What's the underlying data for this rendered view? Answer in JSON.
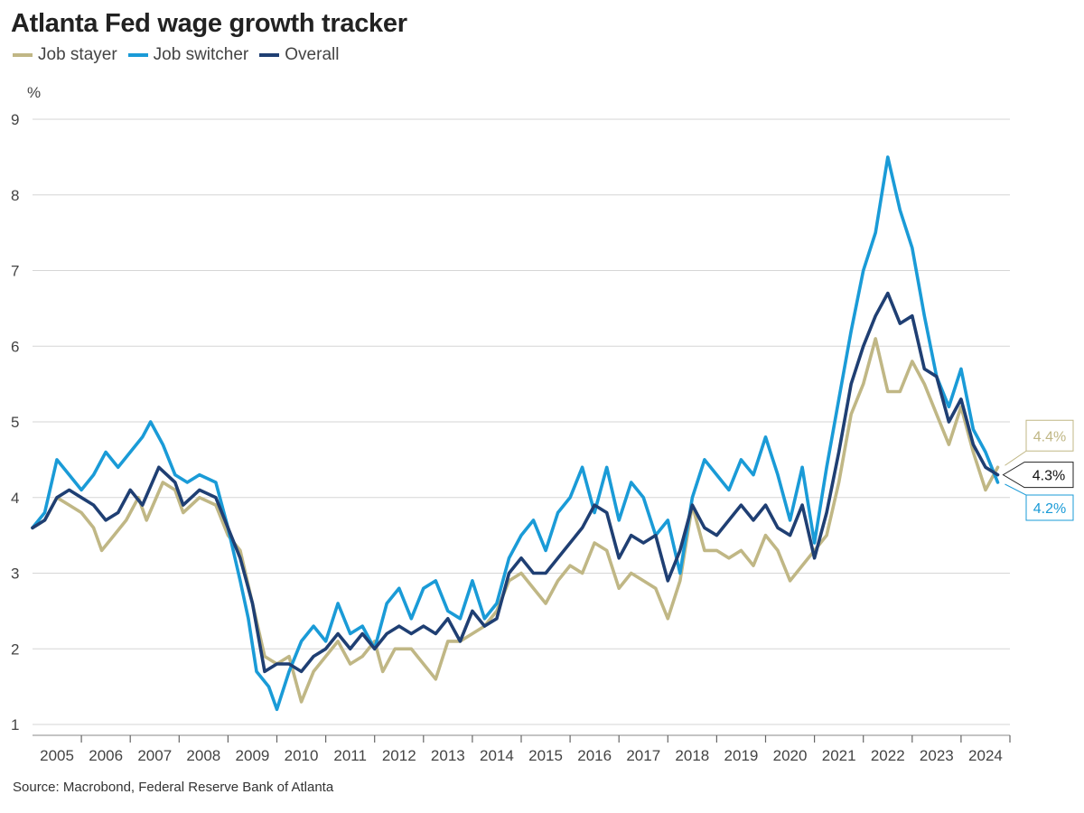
{
  "title": "Atlanta Fed wage growth tracker",
  "source": "Source: Macrobond, Federal Reserve Bank of Atlanta",
  "legend": [
    {
      "name": "Job stayer",
      "color": "#c0b785"
    },
    {
      "name": "Job switcher",
      "color": "#1a9bd7"
    },
    {
      "name": "Overall",
      "color": "#1f3f73"
    }
  ],
  "chart_data": {
    "type": "line",
    "ylabel": "%",
    "ylim": [
      1,
      9
    ],
    "yticks": [
      1,
      2,
      3,
      4,
      5,
      6,
      7,
      8,
      9
    ],
    "xlim": [
      "2005-01",
      "2024-12"
    ],
    "xticks": [
      "2005",
      "2006",
      "2007",
      "2008",
      "2009",
      "2010",
      "2011",
      "2012",
      "2013",
      "2014",
      "2015",
      "2016",
      "2017",
      "2018",
      "2019",
      "2020",
      "2021",
      "2022",
      "2023",
      "2024"
    ],
    "grid": "horizontal",
    "series": [
      {
        "name": "Job stayer",
        "color": "#c0b785",
        "end_label": "4.4%",
        "points": [
          [
            "2005-01",
            3.6
          ],
          [
            "2005-04",
            3.7
          ],
          [
            "2005-07",
            4.0
          ],
          [
            "2005-10",
            3.9
          ],
          [
            "2006-01",
            3.8
          ],
          [
            "2006-04",
            3.6
          ],
          [
            "2006-06",
            3.3
          ],
          [
            "2006-09",
            3.5
          ],
          [
            "2006-12",
            3.7
          ],
          [
            "2007-03",
            4.0
          ],
          [
            "2007-05",
            3.7
          ],
          [
            "2007-09",
            4.2
          ],
          [
            "2007-12",
            4.1
          ],
          [
            "2008-02",
            3.8
          ],
          [
            "2008-06",
            4.0
          ],
          [
            "2008-10",
            3.9
          ],
          [
            "2009-01",
            3.5
          ],
          [
            "2009-04",
            3.3
          ],
          [
            "2009-07",
            2.6
          ],
          [
            "2009-10",
            1.9
          ],
          [
            "2010-01",
            1.8
          ],
          [
            "2010-04",
            1.9
          ],
          [
            "2010-07",
            1.3
          ],
          [
            "2010-10",
            1.7
          ],
          [
            "2011-01",
            1.9
          ],
          [
            "2011-04",
            2.1
          ],
          [
            "2011-07",
            1.8
          ],
          [
            "2011-10",
            1.9
          ],
          [
            "2012-01",
            2.1
          ],
          [
            "2012-03",
            1.7
          ],
          [
            "2012-06",
            2.0
          ],
          [
            "2012-10",
            2.0
          ],
          [
            "2013-01",
            1.8
          ],
          [
            "2013-04",
            1.6
          ],
          [
            "2013-07",
            2.1
          ],
          [
            "2013-10",
            2.1
          ],
          [
            "2014-01",
            2.2
          ],
          [
            "2014-04",
            2.3
          ],
          [
            "2014-07",
            2.5
          ],
          [
            "2014-10",
            2.9
          ],
          [
            "2015-01",
            3.0
          ],
          [
            "2015-04",
            2.8
          ],
          [
            "2015-07",
            2.6
          ],
          [
            "2015-10",
            2.9
          ],
          [
            "2016-01",
            3.1
          ],
          [
            "2016-04",
            3.0
          ],
          [
            "2016-07",
            3.4
          ],
          [
            "2016-10",
            3.3
          ],
          [
            "2017-01",
            2.8
          ],
          [
            "2017-04",
            3.0
          ],
          [
            "2017-07",
            2.9
          ],
          [
            "2017-10",
            2.8
          ],
          [
            "2018-01",
            2.4
          ],
          [
            "2018-04",
            2.9
          ],
          [
            "2018-07",
            3.9
          ],
          [
            "2018-10",
            3.3
          ],
          [
            "2019-01",
            3.3
          ],
          [
            "2019-04",
            3.2
          ],
          [
            "2019-07",
            3.3
          ],
          [
            "2019-10",
            3.1
          ],
          [
            "2020-01",
            3.5
          ],
          [
            "2020-04",
            3.3
          ],
          [
            "2020-07",
            2.9
          ],
          [
            "2020-10",
            3.1
          ],
          [
            "2021-01",
            3.3
          ],
          [
            "2021-04",
            3.5
          ],
          [
            "2021-07",
            4.2
          ],
          [
            "2021-10",
            5.1
          ],
          [
            "2022-01",
            5.5
          ],
          [
            "2022-04",
            6.1
          ],
          [
            "2022-07",
            5.4
          ],
          [
            "2022-10",
            5.4
          ],
          [
            "2023-01",
            5.8
          ],
          [
            "2023-04",
            5.5
          ],
          [
            "2023-07",
            5.1
          ],
          [
            "2023-10",
            4.7
          ],
          [
            "2024-01",
            5.2
          ],
          [
            "2024-04",
            4.6
          ],
          [
            "2024-07",
            4.1
          ],
          [
            "2024-10",
            4.4
          ]
        ]
      },
      {
        "name": "Job switcher",
        "color": "#1a9bd7",
        "end_label": "4.2%",
        "points": [
          [
            "2005-01",
            3.6
          ],
          [
            "2005-04",
            3.8
          ],
          [
            "2005-07",
            4.5
          ],
          [
            "2005-10",
            4.3
          ],
          [
            "2006-01",
            4.1
          ],
          [
            "2006-04",
            4.3
          ],
          [
            "2006-07",
            4.6
          ],
          [
            "2006-10",
            4.4
          ],
          [
            "2007-01",
            4.6
          ],
          [
            "2007-04",
            4.8
          ],
          [
            "2007-06",
            5.0
          ],
          [
            "2007-09",
            4.7
          ],
          [
            "2007-12",
            4.3
          ],
          [
            "2008-03",
            4.2
          ],
          [
            "2008-06",
            4.3
          ],
          [
            "2008-10",
            4.2
          ],
          [
            "2009-01",
            3.6
          ],
          [
            "2009-04",
            2.9
          ],
          [
            "2009-06",
            2.4
          ],
          [
            "2009-08",
            1.7
          ],
          [
            "2009-11",
            1.5
          ],
          [
            "2010-01",
            1.2
          ],
          [
            "2010-04",
            1.7
          ],
          [
            "2010-07",
            2.1
          ],
          [
            "2010-10",
            2.3
          ],
          [
            "2011-01",
            2.1
          ],
          [
            "2011-04",
            2.6
          ],
          [
            "2011-07",
            2.2
          ],
          [
            "2011-10",
            2.3
          ],
          [
            "2012-01",
            2.0
          ],
          [
            "2012-04",
            2.6
          ],
          [
            "2012-07",
            2.8
          ],
          [
            "2012-10",
            2.4
          ],
          [
            "2013-01",
            2.8
          ],
          [
            "2013-04",
            2.9
          ],
          [
            "2013-07",
            2.5
          ],
          [
            "2013-10",
            2.4
          ],
          [
            "2014-01",
            2.9
          ],
          [
            "2014-04",
            2.4
          ],
          [
            "2014-07",
            2.6
          ],
          [
            "2014-10",
            3.2
          ],
          [
            "2015-01",
            3.5
          ],
          [
            "2015-04",
            3.7
          ],
          [
            "2015-07",
            3.3
          ],
          [
            "2015-10",
            3.8
          ],
          [
            "2016-01",
            4.0
          ],
          [
            "2016-04",
            4.4
          ],
          [
            "2016-07",
            3.8
          ],
          [
            "2016-10",
            4.4
          ],
          [
            "2017-01",
            3.7
          ],
          [
            "2017-04",
            4.2
          ],
          [
            "2017-07",
            4.0
          ],
          [
            "2017-10",
            3.5
          ],
          [
            "2018-01",
            3.7
          ],
          [
            "2018-04",
            3.0
          ],
          [
            "2018-07",
            4.0
          ],
          [
            "2018-10",
            4.5
          ],
          [
            "2019-01",
            4.3
          ],
          [
            "2019-04",
            4.1
          ],
          [
            "2019-07",
            4.5
          ],
          [
            "2019-10",
            4.3
          ],
          [
            "2020-01",
            4.8
          ],
          [
            "2020-04",
            4.3
          ],
          [
            "2020-07",
            3.7
          ],
          [
            "2020-10",
            4.4
          ],
          [
            "2021-01",
            3.4
          ],
          [
            "2021-04",
            4.4
          ],
          [
            "2021-07",
            5.3
          ],
          [
            "2021-10",
            6.2
          ],
          [
            "2022-01",
            7.0
          ],
          [
            "2022-04",
            7.5
          ],
          [
            "2022-07",
            8.5
          ],
          [
            "2022-10",
            7.8
          ],
          [
            "2023-01",
            7.3
          ],
          [
            "2023-04",
            6.4
          ],
          [
            "2023-07",
            5.6
          ],
          [
            "2023-10",
            5.2
          ],
          [
            "2024-01",
            5.7
          ],
          [
            "2024-04",
            4.9
          ],
          [
            "2024-07",
            4.6
          ],
          [
            "2024-10",
            4.2
          ]
        ]
      },
      {
        "name": "Overall",
        "color": "#1f3f73",
        "end_label": "4.3%",
        "points": [
          [
            "2005-01",
            3.6
          ],
          [
            "2005-04",
            3.7
          ],
          [
            "2005-07",
            4.0
          ],
          [
            "2005-10",
            4.1
          ],
          [
            "2006-01",
            4.0
          ],
          [
            "2006-04",
            3.9
          ],
          [
            "2006-07",
            3.7
          ],
          [
            "2006-10",
            3.8
          ],
          [
            "2007-01",
            4.1
          ],
          [
            "2007-04",
            3.9
          ],
          [
            "2007-08",
            4.4
          ],
          [
            "2007-12",
            4.2
          ],
          [
            "2008-02",
            3.9
          ],
          [
            "2008-06",
            4.1
          ],
          [
            "2008-10",
            4.0
          ],
          [
            "2009-01",
            3.6
          ],
          [
            "2009-04",
            3.2
          ],
          [
            "2009-07",
            2.6
          ],
          [
            "2009-10",
            1.7
          ],
          [
            "2010-01",
            1.8
          ],
          [
            "2010-04",
            1.8
          ],
          [
            "2010-07",
            1.7
          ],
          [
            "2010-10",
            1.9
          ],
          [
            "2011-01",
            2.0
          ],
          [
            "2011-04",
            2.2
          ],
          [
            "2011-07",
            2.0
          ],
          [
            "2011-10",
            2.2
          ],
          [
            "2012-01",
            2.0
          ],
          [
            "2012-04",
            2.2
          ],
          [
            "2012-07",
            2.3
          ],
          [
            "2012-10",
            2.2
          ],
          [
            "2013-01",
            2.3
          ],
          [
            "2013-04",
            2.2
          ],
          [
            "2013-07",
            2.4
          ],
          [
            "2013-10",
            2.1
          ],
          [
            "2014-01",
            2.5
          ],
          [
            "2014-04",
            2.3
          ],
          [
            "2014-07",
            2.4
          ],
          [
            "2014-10",
            3.0
          ],
          [
            "2015-01",
            3.2
          ],
          [
            "2015-04",
            3.0
          ],
          [
            "2015-07",
            3.0
          ],
          [
            "2015-10",
            3.2
          ],
          [
            "2016-01",
            3.4
          ],
          [
            "2016-04",
            3.6
          ],
          [
            "2016-07",
            3.9
          ],
          [
            "2016-10",
            3.8
          ],
          [
            "2017-01",
            3.2
          ],
          [
            "2017-04",
            3.5
          ],
          [
            "2017-07",
            3.4
          ],
          [
            "2017-10",
            3.5
          ],
          [
            "2018-01",
            2.9
          ],
          [
            "2018-04",
            3.3
          ],
          [
            "2018-07",
            3.9
          ],
          [
            "2018-10",
            3.6
          ],
          [
            "2019-01",
            3.5
          ],
          [
            "2019-04",
            3.7
          ],
          [
            "2019-07",
            3.9
          ],
          [
            "2019-10",
            3.7
          ],
          [
            "2020-01",
            3.9
          ],
          [
            "2020-04",
            3.6
          ],
          [
            "2020-07",
            3.5
          ],
          [
            "2020-10",
            3.9
          ],
          [
            "2021-01",
            3.2
          ],
          [
            "2021-04",
            3.8
          ],
          [
            "2021-07",
            4.6
          ],
          [
            "2021-10",
            5.5
          ],
          [
            "2022-01",
            6.0
          ],
          [
            "2022-04",
            6.4
          ],
          [
            "2022-07",
            6.7
          ],
          [
            "2022-10",
            6.3
          ],
          [
            "2023-01",
            6.4
          ],
          [
            "2023-04",
            5.7
          ],
          [
            "2023-07",
            5.6
          ],
          [
            "2023-10",
            5.0
          ],
          [
            "2024-01",
            5.3
          ],
          [
            "2024-04",
            4.7
          ],
          [
            "2024-07",
            4.4
          ],
          [
            "2024-10",
            4.3
          ]
        ]
      }
    ]
  }
}
